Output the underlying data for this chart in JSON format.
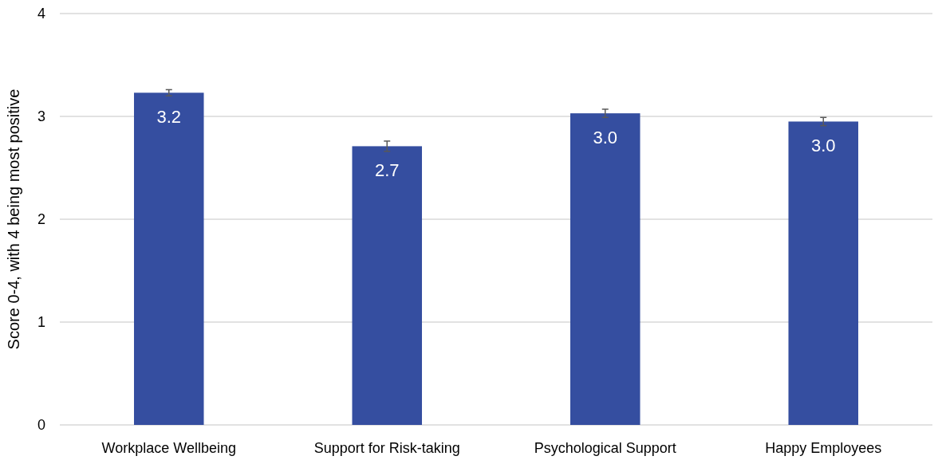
{
  "chart_data": {
    "type": "bar",
    "ylabel": "Score 0-4, with 4 being most positive",
    "categories": [
      "Workplace Wellbeing",
      "Support for Risk-taking",
      "Psychological Support",
      "Happy Employees"
    ],
    "values": [
      3.23,
      2.71,
      3.03,
      2.95
    ],
    "errors": [
      0.03,
      0.05,
      0.04,
      0.04
    ],
    "value_labels": [
      "3.2",
      "2.7",
      "3.0",
      "3.0"
    ],
    "color": "#354ea0",
    "ylim": [
      0,
      4
    ],
    "yticks": [
      0,
      1,
      2,
      3,
      4
    ],
    "grid": "y"
  }
}
